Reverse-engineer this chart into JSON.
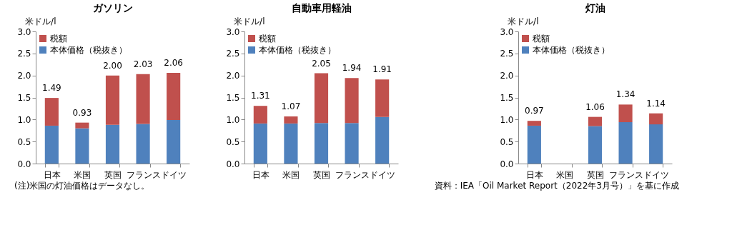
{
  "chart_data": [
    {
      "type": "bar",
      "title": "ガソリン",
      "ylabel": "米ドル/l",
      "categories": [
        "日本",
        "米国",
        "英国",
        "フランス",
        "ドイツ"
      ],
      "stacked": true,
      "series": [
        {
          "name": "本体価格（税抜き）",
          "color": "#4f81bd",
          "values": [
            0.86,
            0.8,
            0.88,
            0.9,
            0.99
          ]
        },
        {
          "name": "税額",
          "color": "#c0504d",
          "values": [
            0.63,
            0.13,
            1.12,
            1.13,
            1.07
          ]
        }
      ],
      "totals": [
        "1.49",
        "0.93",
        "2.00",
        "2.03",
        "2.06"
      ],
      "ylim": [
        0,
        3
      ],
      "yticks": [
        {
          "value": 0,
          "label": "0.0"
        },
        0.5,
        {
          "value": 1,
          "label": "1.0"
        },
        1.5,
        {
          "value": 2,
          "label": "2.0"
        },
        2.5,
        {
          "value": 3,
          "label": "3.0"
        }
      ],
      "legend": "top left",
      "grid": false,
      "annotations": [
        "(注)米国の灯油価格はデータなし。"
      ]
    },
    {
      "type": "bar",
      "title": "自動車用軽油",
      "ylabel": "米ドル/l",
      "categories": [
        "日本",
        "米国",
        "英国",
        "フランス",
        "ドイツ"
      ],
      "stacked": true,
      "series": [
        {
          "name": "本体価格（税抜き）",
          "color": "#4f81bd",
          "values": [
            0.91,
            0.91,
            0.92,
            0.92,
            1.06
          ]
        },
        {
          "name": "税額",
          "color": "#c0504d",
          "values": [
            0.4,
            0.16,
            1.13,
            1.02,
            0.85
          ]
        }
      ],
      "totals": [
        "1.31",
        "1.07",
        "2.05",
        "1.94",
        "1.91"
      ],
      "ylim": [
        0,
        3
      ],
      "yticks": [
        {
          "value": 0,
          "label": "0.0"
        },
        0.5,
        {
          "value": 1,
          "label": "1.0"
        },
        1.5,
        {
          "value": 2,
          "label": "2.0"
        },
        2.5,
        {
          "value": 3,
          "label": "3.0"
        }
      ],
      "legend": "top left",
      "grid": false
    },
    {
      "type": "bar",
      "title": "灯油",
      "ylabel": "米ドル/l",
      "categories": [
        "日本",
        "米国",
        "英国",
        "フランス",
        "ドイツ"
      ],
      "stacked": true,
      "series": [
        {
          "name": "本体価格（税抜き）",
          "color": "#4f81bd",
          "values": [
            0.86,
            null,
            0.85,
            0.94,
            0.89
          ]
        },
        {
          "name": "税額",
          "color": "#c0504d",
          "values": [
            0.11,
            null,
            0.21,
            0.4,
            0.25
          ]
        }
      ],
      "totals": [
        "0.97",
        null,
        "1.06",
        "1.34",
        "1.14"
      ],
      "ylim": [
        0,
        3
      ],
      "yticks": [
        {
          "value": 0,
          "label": "0.0"
        },
        0.5,
        {
          "value": 1,
          "label": "1.0"
        },
        1.5,
        {
          "value": 2,
          "label": "2.0"
        },
        2.5,
        {
          "value": 3,
          "label": "3.0"
        }
      ],
      "legend": "top left",
      "grid": false,
      "annotations": [
        "資料：IEA「Oil Market Report（2022年3月号）」を基に作成"
      ]
    }
  ]
}
